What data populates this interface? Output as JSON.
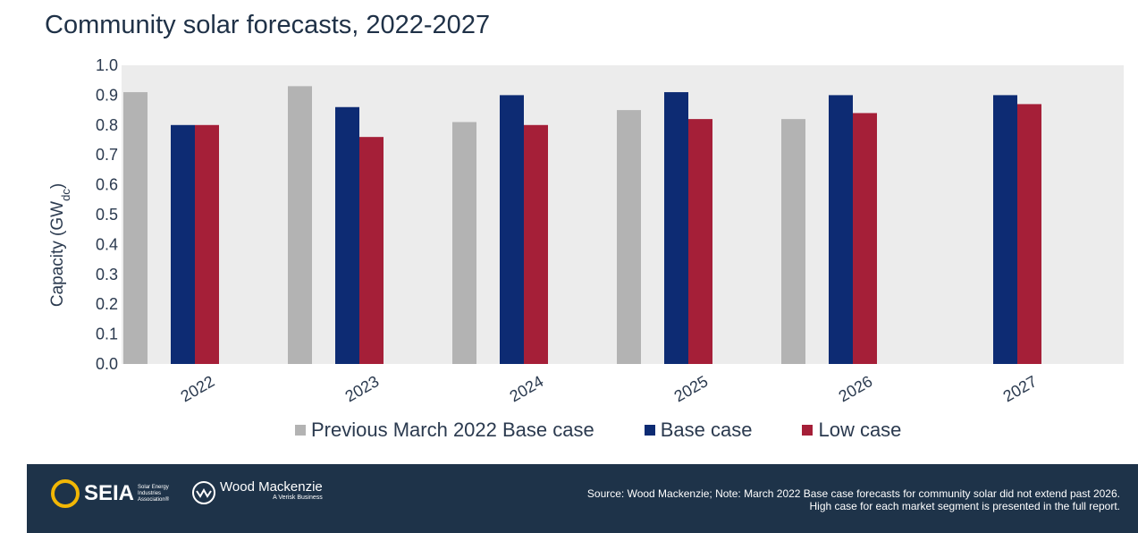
{
  "title": "Community solar forecasts, 2022-2027",
  "chart_data": {
    "type": "bar",
    "title": "Community solar forecasts, 2022-2027",
    "xlabel": "",
    "ylabel": "Capacity (GW",
    "ylabel_sub": "dc",
    "ylabel_close": ")",
    "ylim": [
      0,
      1.0
    ],
    "yticks": [
      "0.0",
      "0.1",
      "0.2",
      "0.3",
      "0.4",
      "0.5",
      "0.6",
      "0.7",
      "0.8",
      "0.9",
      "1.0"
    ],
    "grid": false,
    "legend_position": "bottom",
    "categories": [
      "2022",
      "2023",
      "2024",
      "2025",
      "2026",
      "2027"
    ],
    "series": [
      {
        "name": "Previous March 2022 Base case",
        "color": "#b3b3b3",
        "values": [
          0.91,
          0.93,
          0.81,
          0.85,
          0.82,
          null
        ]
      },
      {
        "name": "Base case",
        "color": "#0d2b73",
        "values": [
          0.8,
          0.86,
          0.9,
          0.91,
          0.9,
          0.9
        ]
      },
      {
        "name": "Low case",
        "color": "#a51f38",
        "values": [
          0.8,
          0.76,
          0.8,
          0.82,
          0.84,
          0.87
        ]
      }
    ]
  },
  "footer": {
    "spia_logo": "SEIA",
    "spia_sub": "Solar Energy Industries Association®",
    "wm_logo": "Wood Mackenzie",
    "wm_tagline": "A Verisk Business",
    "source_text": "Source: Wood Mackenzie; Note: March 2022 Base case forecasts for community solar did not extend past 2026. High case for each market segment is presented in the full report.",
    "background": "#1e3349"
  }
}
